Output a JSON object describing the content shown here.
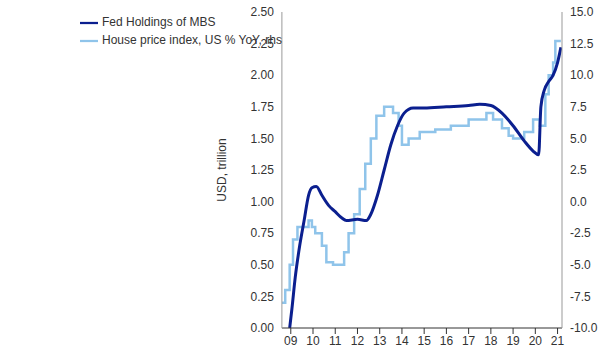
{
  "chart_data": {
    "type": "line",
    "ylabel": "USD, trillion",
    "legend": "top-left",
    "grid": false,
    "xlim": [
      2008.6,
      2021.2
    ],
    "xticks": [
      {
        "value": 2009,
        "label": "09"
      },
      {
        "value": 2010,
        "label": "10"
      },
      {
        "value": 2011,
        "label": "11"
      },
      {
        "value": 2012,
        "label": "12"
      },
      {
        "value": 2013,
        "label": "13"
      },
      {
        "value": 2014,
        "label": "14"
      },
      {
        "value": 2015,
        "label": "15"
      },
      {
        "value": 2016,
        "label": "16"
      },
      {
        "value": 2017,
        "label": "17"
      },
      {
        "value": 2018,
        "label": "18"
      },
      {
        "value": 2019,
        "label": "19"
      },
      {
        "value": 2020,
        "label": "20"
      },
      {
        "value": 2021,
        "label": "21"
      }
    ],
    "ylim": [
      0,
      2.5
    ],
    "yticks": [
      {
        "value": 0,
        "label": "0.00"
      },
      {
        "value": 0.25,
        "label": "0.25"
      },
      {
        "value": 0.5,
        "label": "0.50"
      },
      {
        "value": 0.75,
        "label": "0.75"
      },
      {
        "value": 1,
        "label": "1.00"
      },
      {
        "value": 1.25,
        "label": "1.25"
      },
      {
        "value": 1.5,
        "label": "1.50"
      },
      {
        "value": 1.75,
        "label": "1.75"
      },
      {
        "value": 2,
        "label": "2.00"
      },
      {
        "value": 2.25,
        "label": "2.25"
      },
      {
        "value": 2.5,
        "label": "2.50"
      }
    ],
    "y2lim": [
      -10,
      15
    ],
    "y2ticks": [
      {
        "value": -10,
        "label": "-10.0"
      },
      {
        "value": -7.5,
        "label": "-7.5"
      },
      {
        "value": -5,
        "label": "-5.0"
      },
      {
        "value": -2.5,
        "label": "-2.5"
      },
      {
        "value": 0,
        "label": "0.0"
      },
      {
        "value": 2.5,
        "label": "2.5"
      },
      {
        "value": 5,
        "label": "5.0"
      },
      {
        "value": 7.5,
        "label": "7.5"
      },
      {
        "value": 10,
        "label": "10.0"
      },
      {
        "value": 12.5,
        "label": "12.5"
      },
      {
        "value": 15,
        "label": "15.0"
      }
    ],
    "series": [
      {
        "name": "House price index, US % YoY, rhs",
        "color": "#8fc4ea",
        "line_style": "step",
        "axis": "y2",
        "x": [
          2008.6,
          2008.75,
          2008.95,
          2009.1,
          2009.3,
          2009.8,
          2009.95,
          2010.1,
          2010.4,
          2010.6,
          2010.9,
          2011.2,
          2011.4,
          2011.6,
          2011.85,
          2012.1,
          2012.35,
          2012.6,
          2012.85,
          2013.2,
          2013.6,
          2013.85,
          2014.0,
          2014.3,
          2014.8,
          2015.5,
          2016.2,
          2017.0,
          2017.8,
          2018.1,
          2018.5,
          2018.8,
          2019.0,
          2019.5,
          2019.9,
          2020.2,
          2020.45,
          2020.6,
          2020.8,
          2020.9,
          2021.15
        ],
        "values": [
          -8,
          -7,
          -5,
          -3,
          -2,
          -1.5,
          -2,
          -2.5,
          -3.5,
          -4.8,
          -5,
          -5,
          -4,
          -2.5,
          -1,
          1,
          3,
          5,
          6.8,
          7.5,
          7,
          6,
          4.5,
          5,
          5.5,
          5.7,
          6,
          6.5,
          7,
          6.5,
          5.8,
          5.2,
          5,
          5.5,
          6.5,
          6,
          8.5,
          10,
          11,
          12.7,
          12.7
        ]
      },
      {
        "name": "Fed Holdings of MBS",
        "color": "#0b1f8f",
        "line_style": "solid",
        "x": [
          2008.95,
          2009.05,
          2009.2,
          2009.4,
          2009.6,
          2009.8,
          2009.95,
          2010.15,
          2010.4,
          2010.7,
          2011.0,
          2011.3,
          2011.5,
          2012.0,
          2012.4,
          2012.6,
          2012.9,
          2013.2,
          2013.5,
          2013.8,
          2014.1,
          2014.5,
          2015.0,
          2016.0,
          2017.0,
          2017.5,
          2018.0,
          2018.5,
          2019.0,
          2019.5,
          2019.9,
          2020.15,
          2020.25,
          2020.4,
          2020.6,
          2020.8,
          2021.0,
          2021.15
        ],
        "values": [
          0.0,
          0.15,
          0.4,
          0.65,
          0.85,
          1.05,
          1.11,
          1.12,
          1.05,
          0.97,
          0.92,
          0.87,
          0.85,
          0.86,
          0.85,
          0.9,
          1.05,
          1.25,
          1.45,
          1.6,
          1.7,
          1.74,
          1.74,
          1.75,
          1.76,
          1.77,
          1.76,
          1.7,
          1.6,
          1.48,
          1.4,
          1.37,
          1.75,
          1.88,
          1.95,
          2.0,
          2.1,
          2.22
        ]
      }
    ]
  }
}
